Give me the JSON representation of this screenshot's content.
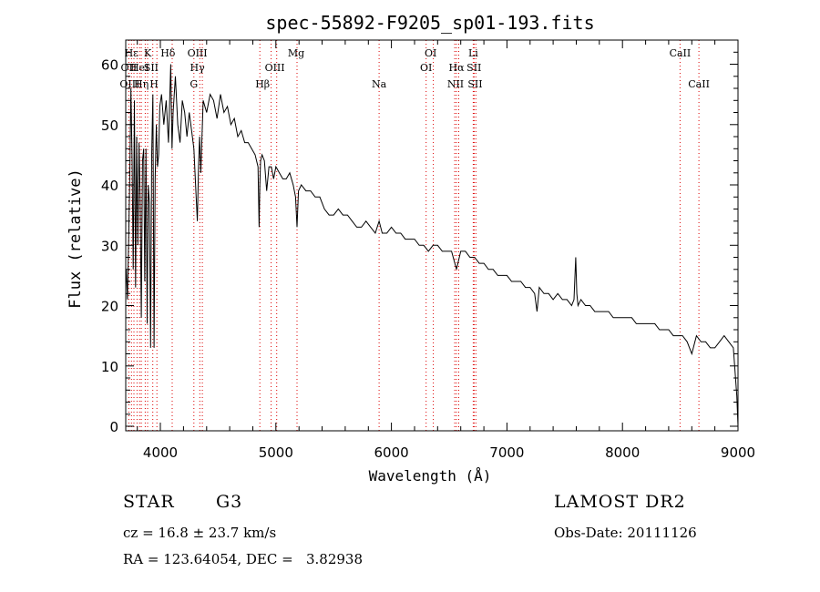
{
  "chart_data": {
    "type": "line",
    "title": "spec-55892-F9205_sp01-193.fits",
    "xlabel": "Wavelength (Å)",
    "ylabel": "Flux (relative)",
    "xlim": [
      3700,
      9000
    ],
    "ylim": [
      0,
      64
    ],
    "xticks": [
      4000,
      5000,
      6000,
      7000,
      8000,
      9000
    ],
    "yticks": [
      0,
      10,
      20,
      30,
      40,
      50,
      60
    ],
    "grid": false,
    "line_color": "#000000",
    "marker_color": "#dd0000",
    "x": [
      3705,
      3715,
      3725,
      3735,
      3745,
      3755,
      3765,
      3775,
      3785,
      3795,
      3805,
      3815,
      3825,
      3835,
      3845,
      3855,
      3865,
      3875,
      3885,
      3895,
      3905,
      3915,
      3925,
      3935,
      3945,
      3955,
      3965,
      3975,
      3985,
      3995,
      4010,
      4030,
      4050,
      4070,
      4090,
      4101,
      4110,
      4130,
      4150,
      4170,
      4190,
      4210,
      4230,
      4250,
      4270,
      4290,
      4310,
      4320,
      4330,
      4340,
      4350,
      4370,
      4400,
      4430,
      4460,
      4490,
      4520,
      4550,
      4580,
      4610,
      4640,
      4670,
      4700,
      4730,
      4760,
      4790,
      4820,
      4845,
      4855,
      4861,
      4867,
      4880,
      4900,
      4920,
      4940,
      4960,
      4980,
      5000,
      5030,
      5060,
      5090,
      5120,
      5150,
      5170,
      5183,
      5195,
      5220,
      5260,
      5300,
      5340,
      5380,
      5420,
      5460,
      5500,
      5540,
      5580,
      5620,
      5660,
      5700,
      5740,
      5780,
      5820,
      5860,
      5893,
      5920,
      5960,
      6000,
      6040,
      6080,
      6120,
      6160,
      6200,
      6240,
      6280,
      6320,
      6360,
      6400,
      6440,
      6480,
      6520,
      6563,
      6600,
      6640,
      6680,
      6720,
      6760,
      6800,
      6840,
      6880,
      6920,
      6960,
      7000,
      7040,
      7080,
      7120,
      7160,
      7200,
      7240,
      7260,
      7280,
      7320,
      7360,
      7400,
      7440,
      7480,
      7520,
      7560,
      7580,
      7595,
      7605,
      7615,
      7640,
      7680,
      7720,
      7760,
      7800,
      7840,
      7880,
      7920,
      7960,
      8000,
      8040,
      8080,
      8120,
      8160,
      8200,
      8240,
      8280,
      8320,
      8360,
      8400,
      8440,
      8480,
      8520,
      8560,
      8600,
      8640,
      8680,
      8720,
      8760,
      8800,
      8840,
      8880,
      8920,
      8960,
      8990,
      9000
    ],
    "y": [
      26,
      21,
      31,
      41,
      56,
      44,
      26,
      54,
      23,
      48,
      30,
      47,
      38,
      18,
      44,
      46,
      24,
      46,
      17,
      40,
      37,
      13,
      45,
      55,
      13,
      41,
      50,
      43,
      45,
      53,
      55,
      50,
      54,
      47,
      60,
      46,
      52,
      58,
      50,
      47,
      54,
      52,
      48,
      52,
      49,
      46,
      38,
      34,
      43,
      48,
      42,
      54,
      52,
      55,
      54,
      51,
      55,
      52,
      53,
      50,
      51,
      48,
      49,
      47,
      47,
      46,
      45,
      43,
      33,
      40,
      44,
      45,
      44,
      39,
      43,
      43,
      41,
      43,
      42,
      41,
      41,
      42,
      40,
      38,
      33,
      39,
      40,
      39,
      39,
      38,
      38,
      36,
      35,
      35,
      36,
      35,
      35,
      34,
      33,
      33,
      34,
      33,
      32,
      34,
      32,
      32,
      33,
      32,
      32,
      31,
      31,
      31,
      30,
      30,
      29,
      30,
      30,
      29,
      29,
      29,
      26,
      29,
      29,
      28,
      28,
      27,
      27,
      26,
      26,
      25,
      25,
      25,
      24,
      24,
      24,
      23,
      23,
      22,
      19,
      23,
      22,
      22,
      21,
      22,
      21,
      21,
      20,
      21,
      28,
      22,
      20,
      21,
      20,
      20,
      19,
      19,
      19,
      19,
      18,
      18,
      18,
      18,
      18,
      17,
      17,
      17,
      17,
      17,
      16,
      16,
      16,
      15,
      15,
      15,
      14,
      12,
      15,
      14,
      14,
      13,
      13,
      14,
      15,
      14,
      13,
      5,
      0
    ]
  },
  "line_markers": [
    {
      "label": "OII",
      "x": 3727,
      "row": 2
    },
    {
      "label": "OIII",
      "x": 3735,
      "row": 3
    },
    {
      "label": "Hε",
      "x": 3750,
      "row": 1
    },
    {
      "label": "HeI",
      "x": 3820,
      "row": 2
    },
    {
      "label": "Hη",
      "x": 3835,
      "row": 3
    },
    {
      "label": "K",
      "x": 3890,
      "row": 1
    },
    {
      "label": "SII",
      "x": 3920,
      "row": 2
    },
    {
      "label": "H",
      "x": 3945,
      "row": 3
    },
    {
      "label": "Hδ",
      "x": 4065,
      "row": 1
    },
    {
      "label": "OIII",
      "x": 4320,
      "row": 1
    },
    {
      "label": "Hγ",
      "x": 4320,
      "row": 2
    },
    {
      "label": "G",
      "x": 4290,
      "row": 3
    },
    {
      "label": "Mg",
      "x": 5175,
      "row": 1
    },
    {
      "label": "OIII",
      "x": 4990,
      "row": 2
    },
    {
      "label": "Hβ",
      "x": 4885,
      "row": 3
    },
    {
      "label": "Na",
      "x": 5893,
      "row": 3
    },
    {
      "label": "OI",
      "x": 6340,
      "row": 1
    },
    {
      "label": "OI",
      "x": 6300,
      "row": 2
    },
    {
      "label": "NII",
      "x": 6555,
      "row": 3
    },
    {
      "label": "Hα",
      "x": 6563,
      "row": 2
    },
    {
      "label": "Li",
      "x": 6708,
      "row": 1
    },
    {
      "label": "SII",
      "x": 6715,
      "row": 2
    },
    {
      "label": "SII",
      "x": 6725,
      "row": 3
    },
    {
      "label": "CaII",
      "x": 8498,
      "row": 1
    },
    {
      "label": "CaII",
      "x": 8662,
      "row": 3
    }
  ],
  "marker_lines_x": [
    3727,
    3750,
    3771,
    3798,
    3820,
    3835,
    3869,
    3889,
    3934,
    3970,
    4102,
    4290,
    4341,
    4363,
    4861,
    4959,
    5007,
    5183,
    5893,
    6300,
    6363,
    6548,
    6563,
    6583,
    6708,
    6716,
    6731,
    8498,
    8662
  ],
  "info": {
    "object_class": "STAR",
    "subclass": "G3",
    "survey": "LAMOST DR2",
    "velocity": "cz = 16.8 ± 23.7 km/s",
    "obs_date": "Obs-Date: 20111126",
    "coords": "RA = 123.64054, DEC =   3.82938"
  }
}
